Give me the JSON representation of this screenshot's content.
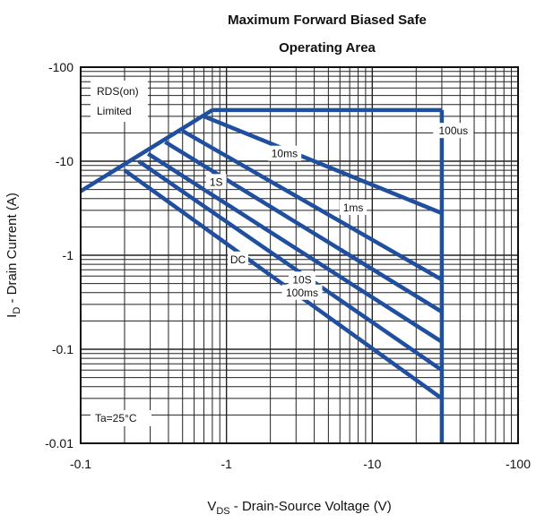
{
  "chart_data": {
    "type": "line",
    "title_line1": "Maximum Forward Biased Safe",
    "title_line2": "Operating Area",
    "xlabel_main": "V",
    "xlabel_sub": "DS",
    "xlabel_rest": " - Drain-Source Voltage (V)",
    "ylabel_main": "I",
    "ylabel_sub": "D",
    "ylabel_rest": " - Drain Current (A)",
    "x_scale": "log",
    "y_scale": "log",
    "xlim": [
      0.1,
      100
    ],
    "ylim": [
      0.01,
      100
    ],
    "x_ticks": [
      {
        "value": 0.1,
        "label": "-0.1"
      },
      {
        "value": 1,
        "label": "-1"
      },
      {
        "value": 10,
        "label": "-10"
      },
      {
        "value": 100,
        "label": "-100"
      }
    ],
    "y_ticks": [
      {
        "value": 100,
        "label": "-100"
      },
      {
        "value": 10,
        "label": "-10"
      },
      {
        "value": 1,
        "label": "-1"
      },
      {
        "value": 0.1,
        "label": "-0.1"
      },
      {
        "value": 0.01,
        "label": "-0.01"
      }
    ],
    "grid": true,
    "line_color": "#1f4f9e",
    "annotations": {
      "rds_line1": "RDS(on)",
      "rds_line2": "Limited",
      "ta": "Ta=25°C"
    },
    "rds_limit": {
      "points": [
        [
          0.1,
          4.8
        ],
        [
          0.8,
          35
        ]
      ]
    },
    "current_limit": {
      "points": [
        [
          0.8,
          35
        ],
        [
          30,
          35
        ]
      ]
    },
    "voltage_limit": {
      "points": [
        [
          30,
          35
        ],
        [
          30,
          0.01
        ]
      ]
    },
    "series": [
      {
        "name": "100us",
        "points": [
          [
            0.8,
            35
          ],
          [
            30,
            35
          ]
        ],
        "label_at": [
          36,
          21
        ]
      },
      {
        "name": "1ms",
        "points": [
          [
            0.7,
            30
          ],
          [
            30,
            2.8
          ]
        ],
        "label_at": [
          7.4,
          3.2
        ]
      },
      {
        "name": "10ms",
        "points": [
          [
            0.5,
            21
          ],
          [
            30,
            0.55
          ]
        ],
        "label_at": [
          2.5,
          12
        ]
      },
      {
        "name": "100ms",
        "points": [
          [
            0.38,
            16
          ],
          [
            30,
            0.25
          ]
        ],
        "label_at": [
          3.3,
          0.4
        ]
      },
      {
        "name": "1S",
        "points": [
          [
            0.29,
            12
          ],
          [
            30,
            0.12
          ]
        ],
        "label_at": [
          0.85,
          6
        ]
      },
      {
        "name": "10S",
        "points": [
          [
            0.25,
            10
          ],
          [
            30,
            0.06
          ]
        ],
        "label_at": [
          3.3,
          0.55
        ]
      },
      {
        "name": "DC",
        "points": [
          [
            0.2,
            8
          ],
          [
            30,
            0.03
          ]
        ],
        "label_at": [
          1.2,
          0.9
        ]
      }
    ]
  }
}
